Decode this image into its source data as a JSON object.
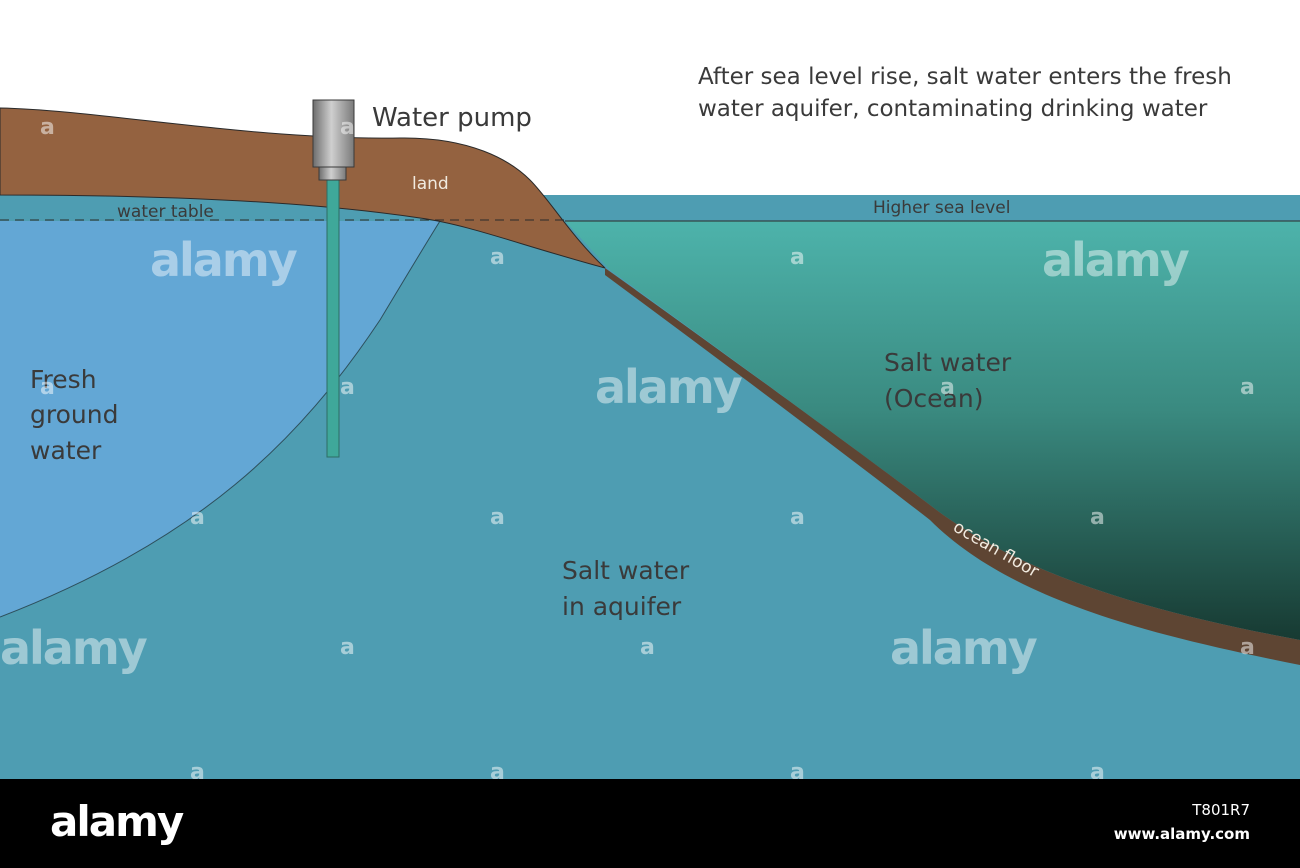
{
  "caption": {
    "line1": "After sea level rise, salt water enters the fresh",
    "line2": "water aquifer, contaminating drinking water"
  },
  "labels": {
    "water_pump": "Water pump",
    "land": "land",
    "water_table": "water table",
    "higher_sea_level": "Higher sea level",
    "fresh_ground_water": [
      "Fresh",
      "ground",
      "water"
    ],
    "salt_water_ocean": [
      "Salt water",
      "(Ocean)"
    ],
    "salt_water_aquifer": [
      "Salt water",
      "in aquifer"
    ],
    "ocean_floor": "ocean floor"
  },
  "colors": {
    "land": "#946240",
    "fresh_water": "#63a7d5",
    "aquifer_salt_water": "#4e9db2",
    "ocean_top": "#4db3ab",
    "ocean_bottom": "#173a32",
    "ocean_floor": "#5e4533",
    "pipe": "#3fa89a",
    "pump": "#a8a8a8"
  },
  "watermark": {
    "brand": "alamy",
    "mark": "a"
  },
  "footer": {
    "logo": "alamy",
    "image_id": "T801R7",
    "url": "www.alamy.com"
  }
}
